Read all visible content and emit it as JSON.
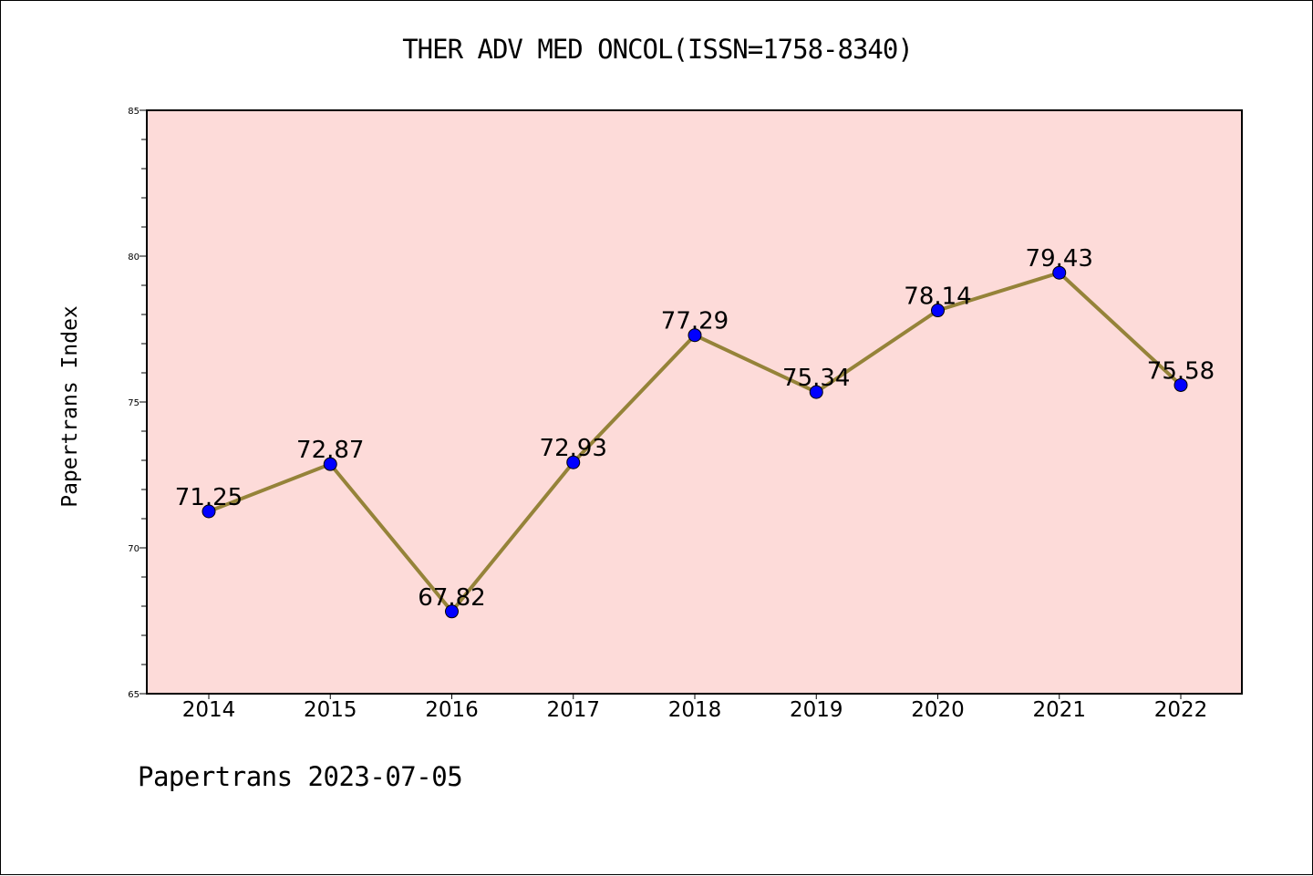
{
  "chart_data": {
    "type": "line",
    "title": "THER ADV MED ONCOL(ISSN=1758-8340)",
    "xlabel": "",
    "ylabel": "Papertrans Index",
    "categories": [
      "2014",
      "2015",
      "2016",
      "2017",
      "2018",
      "2019",
      "2020",
      "2021",
      "2022"
    ],
    "series": [
      {
        "values": [
          71.25,
          72.87,
          67.82,
          72.93,
          77.29,
          75.34,
          78.14,
          79.43,
          75.58
        ]
      }
    ],
    "data_labels": [
      "71.25",
      "72.87",
      "67.82",
      "72.93",
      "77.29",
      "75.34",
      "78.14",
      "79.43",
      "75.58"
    ],
    "ylim": [
      65,
      85
    ],
    "yticks": [
      65,
      70,
      75,
      80,
      85
    ],
    "grid": false,
    "legend": "none",
    "colors": {
      "background": "#fddbd9",
      "line": "#958339",
      "marker": "#0000ff"
    }
  },
  "footer": "Papertrans 2023-07-05"
}
